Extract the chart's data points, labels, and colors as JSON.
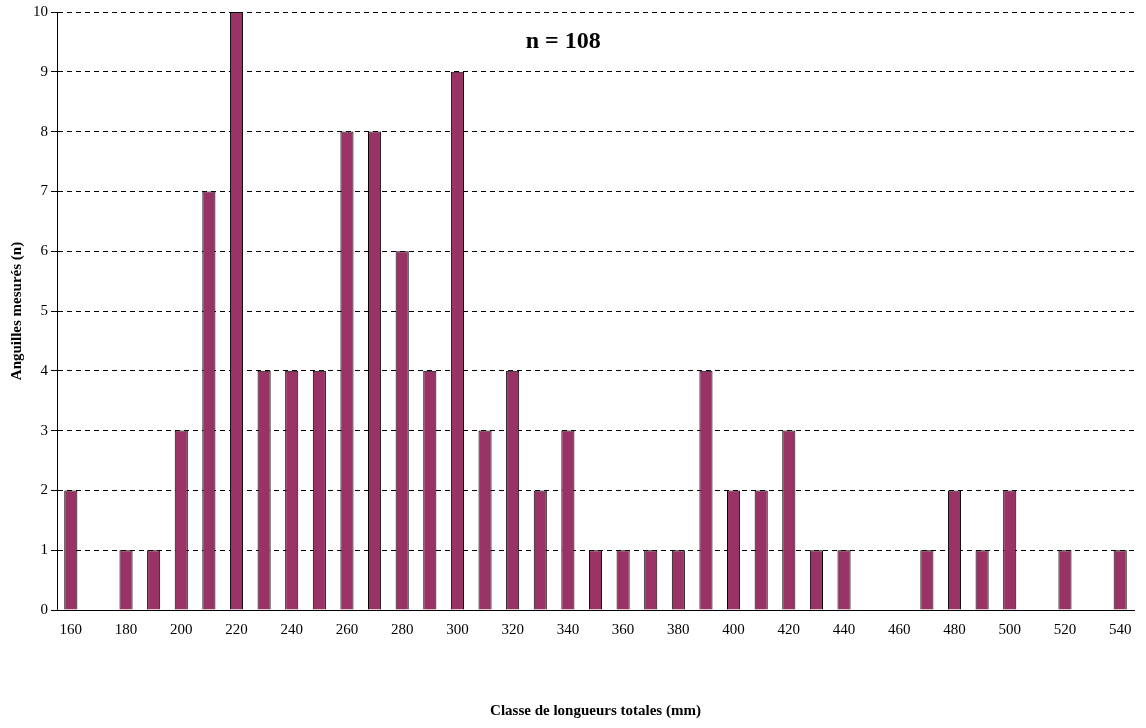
{
  "chart_data": {
    "type": "bar",
    "xlabel": "Classe de longueurs totales (mm)",
    "ylabel": "Anguilles mesurés (n)",
    "categories": [
      "160",
      null,
      "180",
      null,
      "200",
      null,
      "220",
      null,
      "240",
      null,
      "260",
      null,
      "280",
      null,
      "300",
      null,
      "320",
      null,
      "340",
      null,
      "360",
      null,
      "380",
      null,
      "400",
      null,
      "420",
      null,
      "440",
      null,
      "460",
      null,
      "480",
      null,
      "500",
      null,
      "520",
      null,
      "540"
    ],
    "values": [
      2,
      0,
      1,
      1,
      3,
      7,
      10,
      4,
      4,
      4,
      8,
      8,
      6,
      4,
      9,
      3,
      4,
      2,
      3,
      1,
      1,
      1,
      1,
      4,
      2,
      2,
      3,
      1,
      1,
      0,
      0,
      1,
      2,
      1,
      2,
      0,
      1,
      0,
      1
    ],
    "color": "#993366",
    "ylim": [
      0,
      10
    ],
    "yticks": [
      0,
      1,
      2,
      3,
      4,
      5,
      6,
      7,
      8,
      9,
      10
    ],
    "grid": "y",
    "legend": false,
    "annotations": [
      "n = 108"
    ]
  }
}
